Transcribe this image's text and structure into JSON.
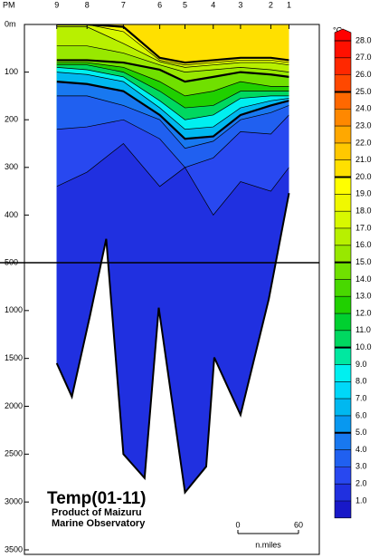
{
  "chart_data": {
    "type": "section",
    "title": "Temp(01-11)",
    "subtitle": [
      "Product of Maizuru",
      "Marine Observatory"
    ],
    "station_prefix": "PM",
    "stations": {
      "labels": [
        9,
        8,
        7,
        6,
        5,
        4,
        3,
        2,
        1
      ],
      "x": [
        32,
        62,
        98,
        134,
        159,
        187,
        214,
        244,
        262
      ]
    },
    "xlim": [
      0,
      292
    ],
    "ylim": [
      0,
      3500
    ],
    "y_break": 500,
    "yticks": [
      {
        "value": 0,
        "label": "0m"
      },
      100,
      200,
      300,
      400,
      500,
      1000,
      1500,
      2000,
      2500,
      3000,
      3500
    ],
    "isotherms": [
      {
        "temp": 20,
        "depths": [
          0,
          0,
          5,
          70,
          80,
          75,
          70,
          70,
          75
        ]
      },
      {
        "temp": 18,
        "depths": [
          0,
          0,
          15,
          75,
          85,
          80,
          75,
          75,
          80
        ]
      },
      {
        "temp": 17,
        "depths": [
          5,
          5,
          40,
          78,
          90,
          85,
          80,
          80,
          85
        ]
      },
      {
        "temp": 16,
        "depths": [
          45,
          45,
          60,
          85,
          100,
          95,
          90,
          95,
          100
        ]
      },
      {
        "temp": 15,
        "depths": [
          75,
          75,
          80,
          95,
          120,
          110,
          100,
          105,
          110
        ]
      },
      {
        "temp": 13,
        "depths": [
          80,
          80,
          90,
          120,
          150,
          140,
          120,
          130,
          130
        ]
      },
      {
        "temp": 11,
        "depths": [
          85,
          85,
          100,
          140,
          175,
          170,
          140,
          140,
          140
        ]
      },
      {
        "temp": 9,
        "depths": [
          90,
          95,
          110,
          160,
          200,
          190,
          155,
          150,
          150
        ]
      },
      {
        "temp": 7,
        "depths": [
          100,
          105,
          120,
          175,
          220,
          215,
          175,
          160,
          155
        ]
      },
      {
        "temp": 5,
        "depths": [
          120,
          125,
          140,
          190,
          240,
          235,
          190,
          170,
          160
        ]
      },
      {
        "temp": 4,
        "depths": [
          150,
          150,
          170,
          200,
          260,
          245,
          200,
          185,
          170
        ]
      },
      {
        "temp": 3,
        "depths": [
          220,
          215,
          200,
          240,
          300,
          280,
          225,
          230,
          190
        ]
      },
      {
        "temp": 2,
        "depths": [
          340,
          310,
          250,
          340,
          300,
          400,
          330,
          350,
          300
        ]
      }
    ],
    "bottom": {
      "x": [
        32,
        47,
        65,
        81,
        98,
        119,
        133,
        159,
        180,
        188,
        214,
        242,
        262
      ],
      "depths": [
        1550,
        1900,
        1050,
        450,
        2500,
        2750,
        970,
        2900,
        2630,
        1490,
        2090,
        880,
        354
      ]
    },
    "colors": [
      "#1818c8",
      "#2030e0",
      "#2848f0",
      "#2060f0",
      "#1878f0",
      "#0898f0",
      "#00b8f0",
      "#00d8f8",
      "#00f0f0",
      "#00e8a0",
      "#00d860",
      "#00d030",
      "#20d000",
      "#48d800",
      "#70e000",
      "#98e800",
      "#b8f000",
      "#d8f800",
      "#f0f800",
      "#ffff00",
      "#ffe000",
      "#ffc800",
      "#ffa800",
      "#ff8800",
      "#ff6800",
      "#ff4800",
      "#ff2800",
      "#ff1000",
      "#ff0000"
    ],
    "colorbar": {
      "unit": "°C",
      "levels": [
        {
          "value": 28,
          "label": "28.0"
        },
        {
          "value": 27,
          "label": "27.0"
        },
        {
          "value": 26,
          "label": "26.0"
        },
        {
          "value": 25,
          "label": "25.0"
        },
        {
          "value": 24,
          "label": "24.0"
        },
        {
          "value": 23,
          "label": "23.0"
        },
        {
          "value": 22,
          "label": "22.0"
        },
        {
          "value": 21,
          "label": "21.0"
        },
        {
          "value": 20,
          "label": "20.0"
        },
        {
          "value": 19,
          "label": "19.0"
        },
        {
          "value": 18,
          "label": "18.0"
        },
        {
          "value": 17,
          "label": "17.0"
        },
        {
          "value": 16,
          "label": "16.0"
        },
        {
          "value": 15,
          "label": "15.0"
        },
        {
          "value": 14,
          "label": "14.0"
        },
        {
          "value": 13,
          "label": "13.0"
        },
        {
          "value": 12,
          "label": "12.0"
        },
        {
          "value": 11,
          "label": "11.0"
        },
        {
          "value": 10,
          "label": "10.0"
        },
        {
          "value": 9,
          "label": "9.0"
        },
        {
          "value": 8,
          "label": "8.0"
        },
        {
          "value": 7,
          "label": "7.0"
        },
        {
          "value": 6,
          "label": "6.0"
        },
        {
          "value": 5,
          "label": "5.0"
        },
        {
          "value": 4,
          "label": "4.0"
        },
        {
          "value": 3,
          "label": "3.0"
        },
        {
          "value": 2,
          "label": "2.0"
        },
        {
          "value": 1,
          "label": "1.0"
        }
      ]
    },
    "scale_bar": {
      "labels": [
        0,
        60
      ],
      "unit": "n.miles"
    }
  }
}
